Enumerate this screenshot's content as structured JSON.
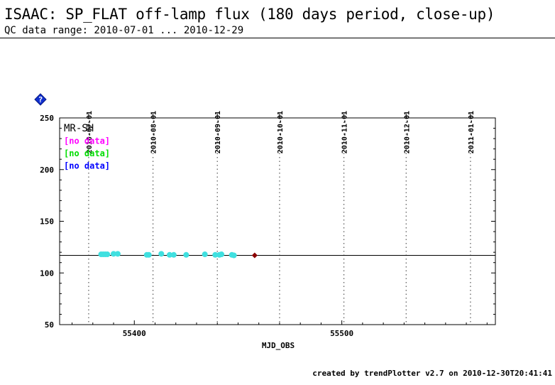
{
  "header": {
    "title": "ISAAC: SP_FLAT off-lamp flux (180 days period, close-up)",
    "subtitle": "QC data range: 2010-07-01 ... 2010-12-29"
  },
  "footer": {
    "credit": "created by trendPlotter v2.7 on 2010-12-30T20:41:41"
  },
  "help_icon": "diamond-question-icon",
  "chart_data": {
    "type": "scatter",
    "xlabel": "MJD_OBS",
    "ylabel": "",
    "xlim": [
      55364,
      55574
    ],
    "ylim": [
      50,
      250
    ],
    "x_ticks": [
      55400,
      55500
    ],
    "y_ticks": [
      50,
      100,
      150,
      200,
      250
    ],
    "top_axis_dates": [
      {
        "label": "2010-07-01",
        "mjd": 55378
      },
      {
        "label": "2010-08-01",
        "mjd": 55409
      },
      {
        "label": "2010-09-01",
        "mjd": 55440
      },
      {
        "label": "2010-10-01",
        "mjd": 55470
      },
      {
        "label": "2010-11-01",
        "mjd": 55501
      },
      {
        "label": "2010-12-01",
        "mjd": 55531
      },
      {
        "label": "2011-01-01",
        "mjd": 55562
      }
    ],
    "grid": "vertical-dotted-at-month-starts",
    "reference_line_y": 117,
    "legend": {
      "placement": "top-left",
      "entries": [
        {
          "label": "MR-SH",
          "color": "#000000"
        },
        {
          "label": "[no data]",
          "color": "#ff00ff"
        },
        {
          "label": "[no data]",
          "color": "#00dd00"
        },
        {
          "label": "[no data]",
          "color": "#0000ff"
        }
      ]
    },
    "series": [
      {
        "color": "#40e0e0",
        "marker": "circle",
        "x": [
          55384,
          55385,
          55386,
          55387,
          55390,
          55392,
          55406,
          55407,
          55413,
          55417,
          55419,
          55425,
          55434,
          55439,
          55441,
          55442,
          55447,
          55448
        ],
        "y": [
          118,
          118,
          118,
          118,
          118.5,
          118.5,
          117.5,
          117.5,
          118.5,
          117.5,
          117.5,
          117.5,
          118,
          117.5,
          117.5,
          118,
          117.5,
          117
        ]
      },
      {
        "color": "#8b0000",
        "marker": "diamond",
        "x": [
          55458
        ],
        "y": [
          117
        ]
      }
    ]
  }
}
